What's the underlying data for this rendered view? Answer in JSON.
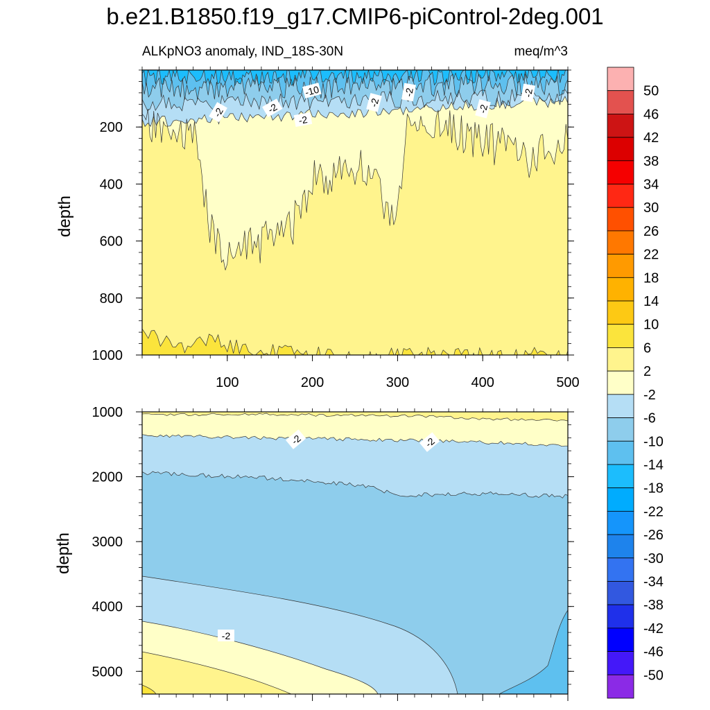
{
  "title": "b.e21.B1850.f19_g17.CMIP6-piControl-2deg.001",
  "chart_data": [
    {
      "type": "contour",
      "panel": "upper",
      "left_label": "ALKpNO3 anomaly, IND_18S-30N",
      "right_label": "meq/m^3",
      "ylabel": "depth",
      "xlabel": "",
      "xlim": [
        0,
        500
      ],
      "ylim": [
        0,
        1000
      ],
      "y_inverted": true,
      "x_ticks": [
        "100",
        "200",
        "300",
        "400",
        "500"
      ],
      "y_ticks": [
        "200",
        "400",
        "600",
        "800",
        "1000"
      ],
      "contour_labels": [
        "-2",
        "-2",
        "-2",
        "-2",
        "-2",
        "-2",
        "-2",
        "-10"
      ]
    },
    {
      "type": "contour",
      "panel": "lower",
      "ylabel": "depth",
      "xlim": [
        0,
        500
      ],
      "ylim": [
        1000,
        5350
      ],
      "y_inverted": true,
      "y_ticks": [
        "1000",
        "2000",
        "3000",
        "4000",
        "5000"
      ],
      "contour_labels": [
        "-2",
        "-2",
        "-2"
      ]
    }
  ],
  "colorbar": {
    "labels": [
      "50",
      "46",
      "42",
      "38",
      "34",
      "30",
      "26",
      "22",
      "18",
      "14",
      "10",
      "6",
      "2",
      "-2",
      "-6",
      "-10",
      "-14",
      "-18",
      "-22",
      "-26",
      "-30",
      "-34",
      "-38",
      "-42",
      "-46",
      "-50"
    ],
    "colors": [
      "#fcb1b1",
      "#e3524f",
      "#cd1414",
      "#dc0000",
      "#f50000",
      "#ff2814",
      "#ff5000",
      "#ff7800",
      "#ff9a00",
      "#ffb200",
      "#fdc914",
      "#fbe43c",
      "#fff48d",
      "#ffffc8",
      "#b5def5",
      "#8ecdec",
      "#5ec0ef",
      "#1cbdfd",
      "#00acfe",
      "#1595fb",
      "#1e83ec",
      "#3373f1",
      "#3258e0",
      "#1f30ea",
      "#0000ff",
      "#4418f9",
      "#8b2ae6"
    ]
  },
  "palette": {
    "y_light": "#ffffc8",
    "y_main": "#fff48d",
    "y_deep": "#fbe43c",
    "b_pale": "#b5def5",
    "b_light": "#8ecdec",
    "b_mid": "#5ec0ef",
    "b_bright": "#1cbdfd",
    "b_strong": "#00acfe"
  }
}
